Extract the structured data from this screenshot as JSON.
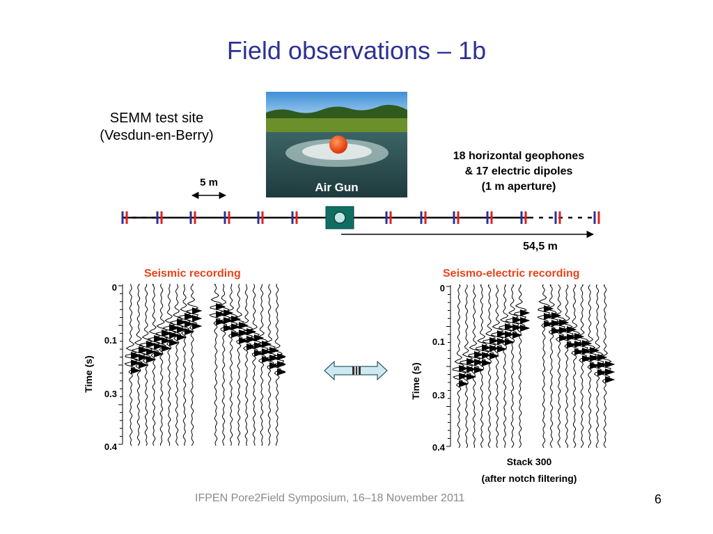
{
  "slide": {
    "title": "Field observations – 1b",
    "site": {
      "line1": "SEMM test site",
      "line2": "(Vesdun-en-Berry)"
    },
    "photo_label": "Air Gun",
    "geophones": {
      "line1": "18 horizontal geophones",
      "line2": "& 17 electric dipoles",
      "line3": "(1 m aperture)"
    },
    "spacing_label": "5 m",
    "distance_label": "54,5 m",
    "seismic": {
      "title": "Seismic recording",
      "ylabel": "Time (s)",
      "ticks": [
        "0",
        "0.1",
        "0.3",
        "0.4"
      ]
    },
    "electric": {
      "title": "Seismo-electric recording",
      "ylabel": "Time (s)",
      "ticks": [
        "0",
        "0.1",
        "0.3",
        "0.4"
      ],
      "note_line1": "Stack 300",
      "note_line2": "(after notch filtering)"
    },
    "footer": "IFPEN Pore2Field Symposium, 16–18 November 2011",
    "page_number": "6"
  },
  "colors": {
    "title": "#2e3192",
    "recording_title": "#e8431b",
    "geophone_marker": "#2e3192",
    "dipole_marker": "#e02020",
    "source_box": "#0f6e63",
    "footer": "#8a8a8a"
  }
}
